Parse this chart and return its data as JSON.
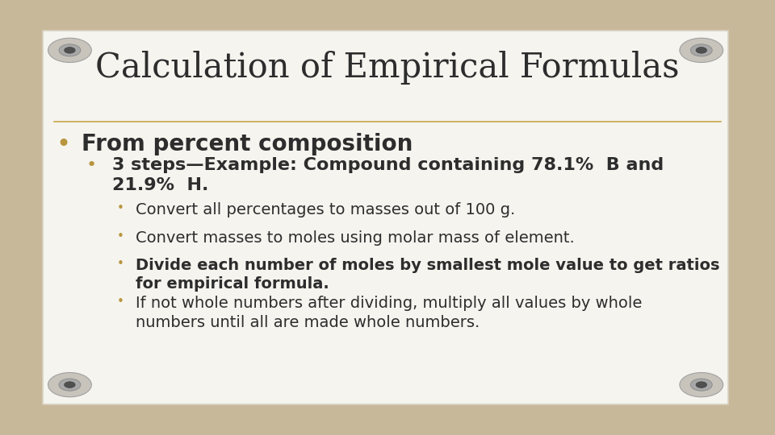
{
  "title": "Calculation of Empirical Formulas",
  "title_fontsize": 30,
  "title_color": "#2d2d2d",
  "background_color": "#c8b89a",
  "card_color": "#f5f4ef",
  "card_edge_color": "#d8d0c0",
  "separator_color": "#c8a84b",
  "bullet_color_1": "#b8963e",
  "bullet_color_2": "#b8963e",
  "bullet_color_3": "#b8963e",
  "line1_text": "From percent composition",
  "line1_bold": true,
  "line1_fontsize": 20,
  "line2_text": "3 steps—Example: Compound containing 78.1%  B and\n21.9%  H.",
  "line2_bold": true,
  "line2_fontsize": 16,
  "line3_text": "Convert all percentages to masses out of 100 g.",
  "line3_bold": false,
  "line3_fontsize": 14,
  "line4_text": "Convert masses to moles using molar mass of element.",
  "line4_bold": false,
  "line4_fontsize": 14,
  "line5_text": "Divide each number of moles by smallest mole value to get ratios\nfor empirical formula.",
  "line5_bold": true,
  "line5_fontsize": 14,
  "line6_text": "If not whole numbers after dividing, multiply all values by whole\nnumbers until all are made whole numbers.",
  "line6_bold": false,
  "line6_fontsize": 14
}
